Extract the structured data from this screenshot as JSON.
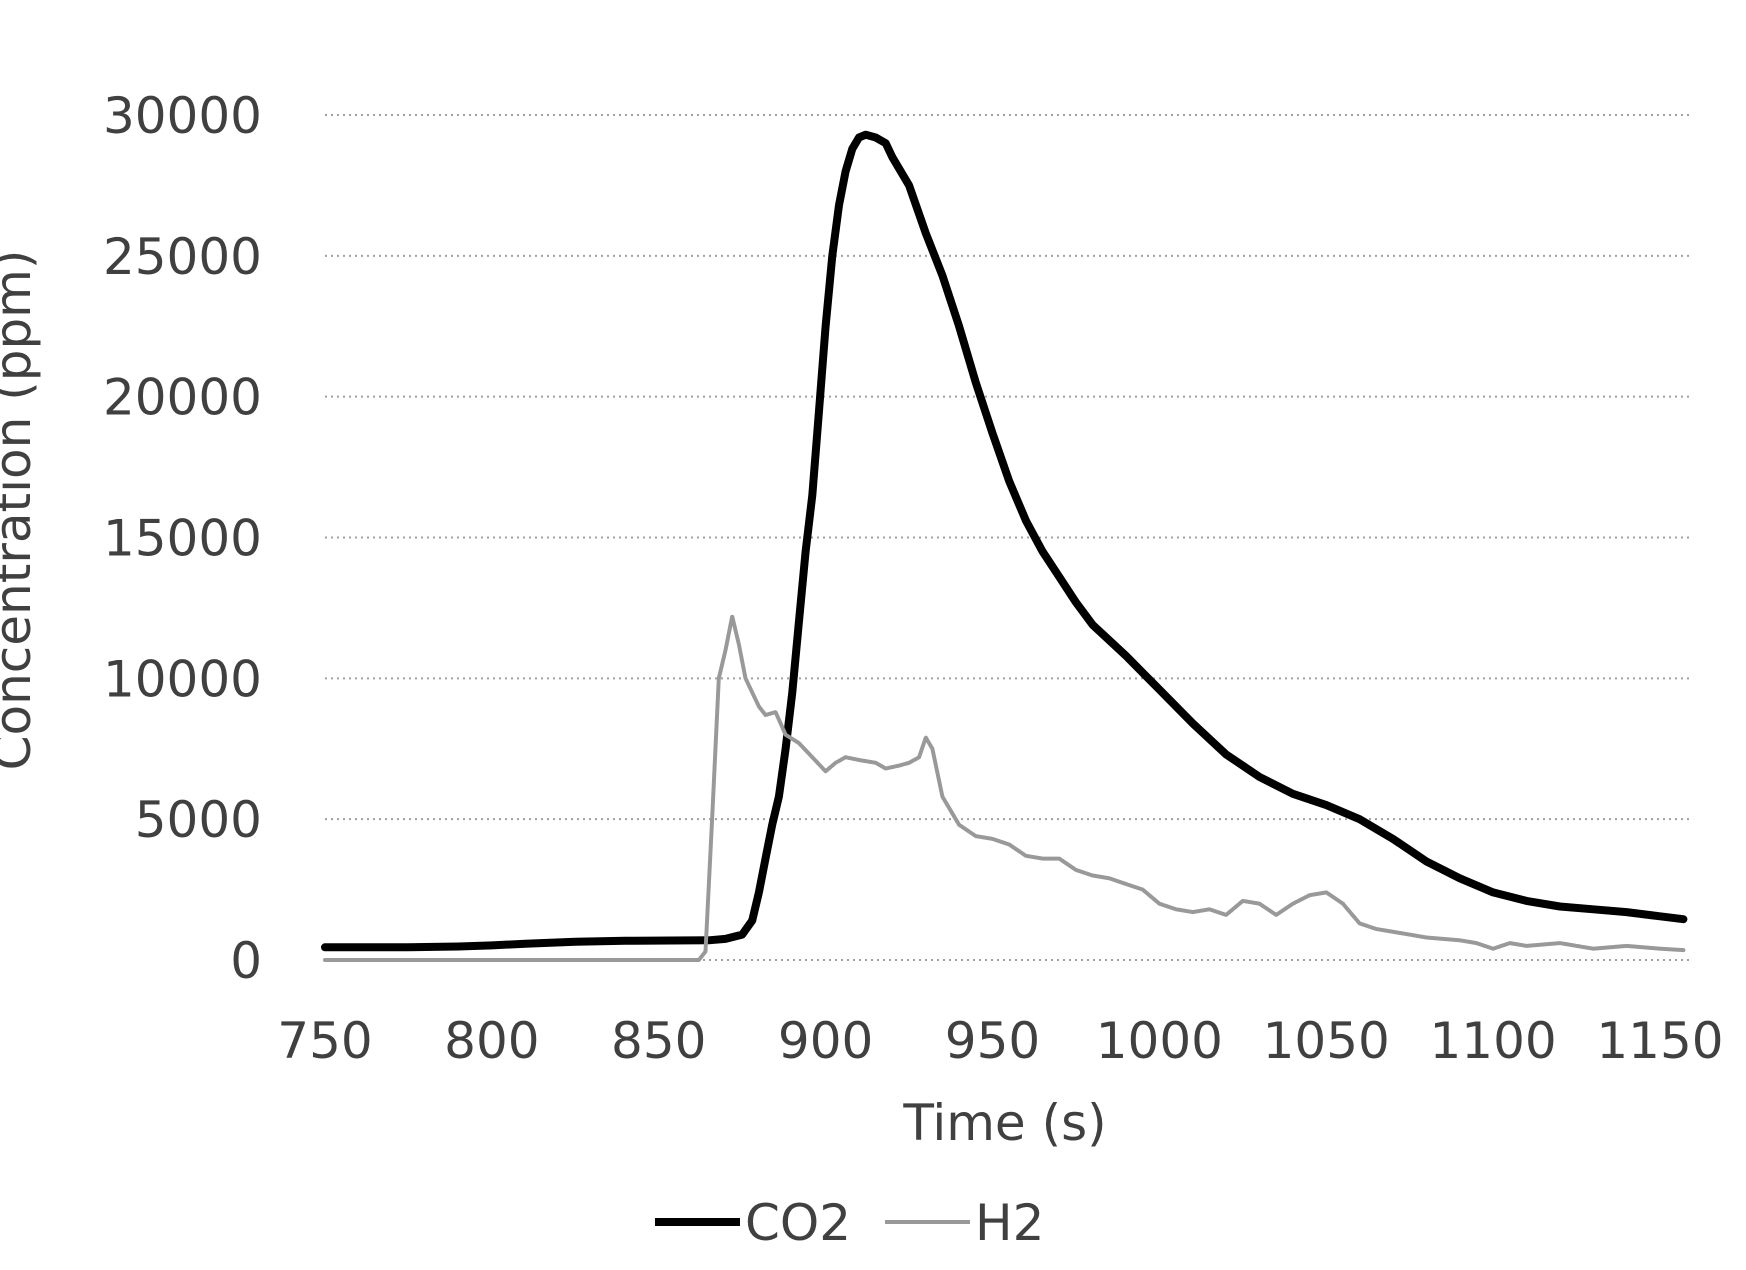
{
  "chart_data": {
    "type": "line",
    "xlabel": "Time (s)",
    "ylabel": "Concentration (ppm)",
    "xlim": [
      750,
      1160
    ],
    "ylim": [
      0,
      30000
    ],
    "xticks": [
      750,
      800,
      850,
      900,
      950,
      1000,
      1050,
      1100,
      1150
    ],
    "yticks": [
      0,
      5000,
      10000,
      15000,
      20000,
      25000,
      30000
    ],
    "grid": "horizontal dotted",
    "legend_position": "bottom-center",
    "series": [
      {
        "name": "CO2",
        "color": "#000000",
        "style": "solid-thick",
        "points": [
          [
            750,
            450
          ],
          [
            775,
            450
          ],
          [
            790,
            480
          ],
          [
            800,
            520
          ],
          [
            810,
            580
          ],
          [
            825,
            650
          ],
          [
            840,
            680
          ],
          [
            865,
            700
          ],
          [
            870,
            750
          ],
          [
            875,
            900
          ],
          [
            878,
            1400
          ],
          [
            880,
            2400
          ],
          [
            882,
            3600
          ],
          [
            884,
            4800
          ],
          [
            886,
            5800
          ],
          [
            888,
            7500
          ],
          [
            890,
            9500
          ],
          [
            892,
            12000
          ],
          [
            894,
            14500
          ],
          [
            896,
            16500
          ],
          [
            898,
            19500
          ],
          [
            900,
            22500
          ],
          [
            902,
            25000
          ],
          [
            904,
            26800
          ],
          [
            906,
            28000
          ],
          [
            908,
            28800
          ],
          [
            910,
            29200
          ],
          [
            912,
            29300
          ],
          [
            915,
            29200
          ],
          [
            918,
            29000
          ],
          [
            920,
            28500
          ],
          [
            925,
            27500
          ],
          [
            930,
            25800
          ],
          [
            935,
            24300
          ],
          [
            940,
            22500
          ],
          [
            945,
            20500
          ],
          [
            950,
            18700
          ],
          [
            955,
            17000
          ],
          [
            960,
            15600
          ],
          [
            965,
            14500
          ],
          [
            970,
            13600
          ],
          [
            975,
            12700
          ],
          [
            980,
            11900
          ],
          [
            990,
            10800
          ],
          [
            1000,
            9600
          ],
          [
            1010,
            8400
          ],
          [
            1020,
            7300
          ],
          [
            1030,
            6500
          ],
          [
            1040,
            5900
          ],
          [
            1050,
            5500
          ],
          [
            1060,
            5000
          ],
          [
            1070,
            4300
          ],
          [
            1080,
            3500
          ],
          [
            1090,
            2900
          ],
          [
            1100,
            2400
          ],
          [
            1110,
            2100
          ],
          [
            1120,
            1900
          ],
          [
            1130,
            1800
          ],
          [
            1140,
            1700
          ],
          [
            1150,
            1550
          ],
          [
            1157,
            1450
          ]
        ]
      },
      {
        "name": "H2",
        "color": "#999999",
        "style": "thin-light",
        "points": [
          [
            750,
            0
          ],
          [
            800,
            0
          ],
          [
            850,
            0
          ],
          [
            862,
            0
          ],
          [
            864,
            300
          ],
          [
            866,
            5000
          ],
          [
            868,
            10000
          ],
          [
            870,
            11000
          ],
          [
            872,
            12200
          ],
          [
            874,
            11200
          ],
          [
            876,
            10000
          ],
          [
            878,
            9500
          ],
          [
            880,
            9000
          ],
          [
            882,
            8700
          ],
          [
            885,
            8800
          ],
          [
            888,
            8000
          ],
          [
            892,
            7700
          ],
          [
            896,
            7200
          ],
          [
            900,
            6700
          ],
          [
            903,
            7000
          ],
          [
            906,
            7200
          ],
          [
            910,
            7100
          ],
          [
            915,
            7000
          ],
          [
            918,
            6800
          ],
          [
            922,
            6900
          ],
          [
            925,
            7000
          ],
          [
            928,
            7200
          ],
          [
            930,
            7900
          ],
          [
            932,
            7500
          ],
          [
            935,
            5800
          ],
          [
            940,
            4800
          ],
          [
            945,
            4400
          ],
          [
            950,
            4300
          ],
          [
            955,
            4100
          ],
          [
            960,
            3700
          ],
          [
            965,
            3600
          ],
          [
            970,
            3600
          ],
          [
            975,
            3200
          ],
          [
            980,
            3000
          ],
          [
            985,
            2900
          ],
          [
            990,
            2700
          ],
          [
            995,
            2500
          ],
          [
            1000,
            2000
          ],
          [
            1005,
            1800
          ],
          [
            1010,
            1700
          ],
          [
            1015,
            1800
          ],
          [
            1020,
            1600
          ],
          [
            1025,
            2100
          ],
          [
            1030,
            2000
          ],
          [
            1035,
            1600
          ],
          [
            1040,
            2000
          ],
          [
            1045,
            2300
          ],
          [
            1050,
            2400
          ],
          [
            1055,
            2000
          ],
          [
            1060,
            1300
          ],
          [
            1065,
            1100
          ],
          [
            1070,
            1000
          ],
          [
            1075,
            900
          ],
          [
            1080,
            800
          ],
          [
            1090,
            700
          ],
          [
            1095,
            600
          ],
          [
            1100,
            400
          ],
          [
            1105,
            600
          ],
          [
            1110,
            500
          ],
          [
            1120,
            600
          ],
          [
            1130,
            400
          ],
          [
            1140,
            500
          ],
          [
            1150,
            400
          ],
          [
            1157,
            350
          ]
        ]
      }
    ]
  }
}
